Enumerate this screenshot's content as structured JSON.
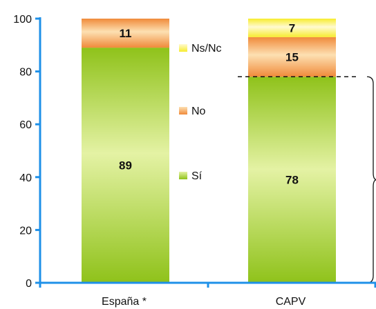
{
  "chart_data": {
    "type": "bar",
    "stacked": true,
    "categories": [
      "España *",
      "CAPV"
    ],
    "series": [
      {
        "name": "Sí",
        "values": [
          89,
          78
        ],
        "color_light": "#e4f2a4",
        "color_dark": "#8fc21a"
      },
      {
        "name": "No",
        "values": [
          11,
          15
        ],
        "color_light": "#fde0b2",
        "color_dark": "#f08a3a"
      },
      {
        "name": "Ns/Nc",
        "values": [
          0,
          7
        ],
        "color_light": "#fffad0",
        "color_dark": "#f7ec2e"
      }
    ],
    "legend_order": [
      "Ns/Nc",
      "No",
      "Sí"
    ],
    "legend_position": "between-bars",
    "ylim": [
      0,
      100
    ],
    "yticks": [
      0,
      20,
      40,
      60,
      80,
      100
    ],
    "grid": false,
    "annotations": [
      {
        "type": "dashed-line",
        "at_value": 78,
        "category": "CAPV"
      },
      {
        "type": "brace",
        "from_value": 0,
        "to_value": 78,
        "side": "right"
      }
    ],
    "axis_color": "#1e90e8"
  }
}
